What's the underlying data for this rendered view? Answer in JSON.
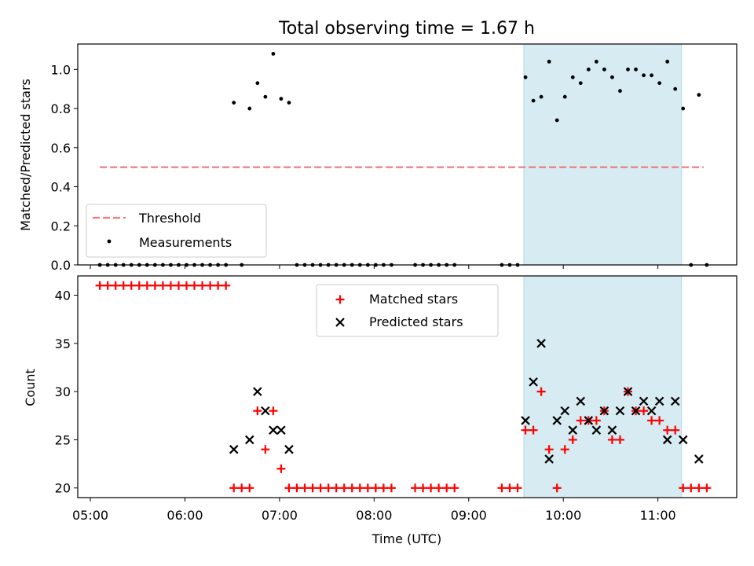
{
  "chart_data": [
    {
      "type": "scatter",
      "title": "Total observing time = 1.67 h",
      "xlabel": "",
      "ylabel": "Matched/Predicted stars",
      "xlim": [
        "04:52",
        "11:50"
      ],
      "ylim": [
        0,
        1.13
      ],
      "yticks": [
        "0.0",
        "0.2",
        "0.4",
        "0.6",
        "0.8",
        "1.0"
      ],
      "xticks": [
        "05:00",
        "06:00",
        "07:00",
        "08:00",
        "09:00",
        "10:00",
        "11:00"
      ],
      "shaded_region": [
        "09:35",
        "11:15"
      ],
      "threshold": {
        "name": "Threshold",
        "value": 0.5,
        "x_range": [
          "05:06",
          "11:29"
        ],
        "color": "#f07878"
      },
      "legend": {
        "placement": "lower-left",
        "entries": [
          "Threshold",
          "Measurements"
        ]
      },
      "series": [
        {
          "name": "Measurements",
          "color": "#000000",
          "points": [
            [
              "05:06",
              0
            ],
            [
              "05:11",
              0
            ],
            [
              "05:16",
              0
            ],
            [
              "05:21",
              0
            ],
            [
              "05:26",
              0
            ],
            [
              "05:31",
              0
            ],
            [
              "05:36",
              0
            ],
            [
              "05:41",
              0
            ],
            [
              "05:46",
              0
            ],
            [
              "05:51",
              0
            ],
            [
              "05:56",
              0
            ],
            [
              "06:01",
              0
            ],
            [
              "06:06",
              0
            ],
            [
              "06:11",
              0
            ],
            [
              "06:16",
              0
            ],
            [
              "06:21",
              0
            ],
            [
              "06:26",
              0
            ],
            [
              "06:31",
              0.83
            ],
            [
              "06:36",
              0
            ],
            [
              "06:41",
              0.8
            ],
            [
              "06:46",
              0.93
            ],
            [
              "06:51",
              0.86
            ],
            [
              "06:56",
              1.08
            ],
            [
              "07:01",
              0.85
            ],
            [
              "07:06",
              0.83
            ],
            [
              "07:11",
              0
            ],
            [
              "07:16",
              0
            ],
            [
              "07:21",
              0
            ],
            [
              "07:26",
              0
            ],
            [
              "07:31",
              0
            ],
            [
              "07:36",
              0
            ],
            [
              "07:41",
              0
            ],
            [
              "07:46",
              0
            ],
            [
              "07:51",
              0
            ],
            [
              "07:56",
              0
            ],
            [
              "08:01",
              0
            ],
            [
              "08:06",
              0
            ],
            [
              "08:11",
              0
            ],
            [
              "08:26",
              0
            ],
            [
              "08:31",
              0
            ],
            [
              "08:36",
              0
            ],
            [
              "08:41",
              0
            ],
            [
              "08:46",
              0
            ],
            [
              "08:51",
              0
            ],
            [
              "09:21",
              0
            ],
            [
              "09:26",
              0
            ],
            [
              "09:31",
              0
            ],
            [
              "09:36",
              0.96
            ],
            [
              "09:41",
              0.84
            ],
            [
              "09:46",
              0.86
            ],
            [
              "09:51",
              1.04
            ],
            [
              "09:56",
              0.74
            ],
            [
              "10:01",
              0.86
            ],
            [
              "10:06",
              0.96
            ],
            [
              "10:11",
              0.93
            ],
            [
              "10:16",
              1.0
            ],
            [
              "10:21",
              1.04
            ],
            [
              "10:26",
              1.0
            ],
            [
              "10:31",
              0.96
            ],
            [
              "10:36",
              0.89
            ],
            [
              "10:41",
              1.0
            ],
            [
              "10:46",
              1.0
            ],
            [
              "10:51",
              0.97
            ],
            [
              "10:56",
              0.97
            ],
            [
              "11:01",
              0.93
            ],
            [
              "11:06",
              1.04
            ],
            [
              "11:11",
              0.9
            ],
            [
              "11:16",
              0.8
            ],
            [
              "11:21",
              0
            ],
            [
              "11:26",
              0.87
            ],
            [
              "11:31",
              0
            ]
          ]
        }
      ]
    },
    {
      "type": "scatter",
      "title": "",
      "xlabel": "Time (UTC)",
      "ylabel": "Count",
      "xlim": [
        "04:52",
        "11:50"
      ],
      "ylim": [
        19,
        42
      ],
      "yticks": [
        "20",
        "25",
        "30",
        "35",
        "40"
      ],
      "xticks": [
        "05:00",
        "06:00",
        "07:00",
        "08:00",
        "09:00",
        "10:00",
        "11:00"
      ],
      "shaded_region": [
        "09:35",
        "11:15"
      ],
      "legend": {
        "placement": "upper-center",
        "entries": [
          "Matched stars",
          "Predicted stars"
        ]
      },
      "series": [
        {
          "name": "Matched stars",
          "marker": "plus",
          "color": "#ff0000",
          "points": [
            [
              "05:06",
              41
            ],
            [
              "05:11",
              41
            ],
            [
              "05:16",
              41
            ],
            [
              "05:21",
              41
            ],
            [
              "05:26",
              41
            ],
            [
              "05:31",
              41
            ],
            [
              "05:36",
              41
            ],
            [
              "05:41",
              41
            ],
            [
              "05:46",
              41
            ],
            [
              "05:51",
              41
            ],
            [
              "05:56",
              41
            ],
            [
              "06:01",
              41
            ],
            [
              "06:06",
              41
            ],
            [
              "06:11",
              41
            ],
            [
              "06:16",
              41
            ],
            [
              "06:21",
              41
            ],
            [
              "06:26",
              41
            ],
            [
              "06:31",
              20
            ],
            [
              "06:36",
              20
            ],
            [
              "06:41",
              20
            ],
            [
              "06:46",
              28
            ],
            [
              "06:51",
              24
            ],
            [
              "06:56",
              28
            ],
            [
              "07:01",
              22
            ],
            [
              "07:06",
              20
            ],
            [
              "07:11",
              20
            ],
            [
              "07:16",
              20
            ],
            [
              "07:21",
              20
            ],
            [
              "07:26",
              20
            ],
            [
              "07:31",
              20
            ],
            [
              "07:36",
              20
            ],
            [
              "07:41",
              20
            ],
            [
              "07:46",
              20
            ],
            [
              "07:51",
              20
            ],
            [
              "07:56",
              20
            ],
            [
              "08:01",
              20
            ],
            [
              "08:06",
              20
            ],
            [
              "08:11",
              20
            ],
            [
              "08:26",
              20
            ],
            [
              "08:31",
              20
            ],
            [
              "08:36",
              20
            ],
            [
              "08:41",
              20
            ],
            [
              "08:46",
              20
            ],
            [
              "08:51",
              20
            ],
            [
              "09:21",
              20
            ],
            [
              "09:26",
              20
            ],
            [
              "09:31",
              20
            ],
            [
              "09:36",
              26
            ],
            [
              "09:41",
              26
            ],
            [
              "09:46",
              30
            ],
            [
              "09:51",
              24
            ],
            [
              "09:56",
              20
            ],
            [
              "10:01",
              24
            ],
            [
              "10:06",
              25
            ],
            [
              "10:11",
              27
            ],
            [
              "10:16",
              27
            ],
            [
              "10:21",
              27
            ],
            [
              "10:26",
              28
            ],
            [
              "10:31",
              25
            ],
            [
              "10:36",
              25
            ],
            [
              "10:41",
              30
            ],
            [
              "10:46",
              28
            ],
            [
              "10:51",
              28
            ],
            [
              "10:56",
              27
            ],
            [
              "11:01",
              27
            ],
            [
              "11:06",
              26
            ],
            [
              "11:11",
              26
            ],
            [
              "11:16",
              20
            ],
            [
              "11:21",
              20
            ],
            [
              "11:26",
              20
            ],
            [
              "11:31",
              20
            ]
          ]
        },
        {
          "name": "Predicted stars",
          "marker": "x",
          "color": "#000000",
          "points": [
            [
              "06:31",
              24
            ],
            [
              "06:41",
              25
            ],
            [
              "06:46",
              30
            ],
            [
              "06:51",
              28
            ],
            [
              "06:56",
              26
            ],
            [
              "07:01",
              26
            ],
            [
              "07:06",
              24
            ],
            [
              "09:36",
              27
            ],
            [
              "09:41",
              31
            ],
            [
              "09:46",
              35
            ],
            [
              "09:51",
              23
            ],
            [
              "09:56",
              27
            ],
            [
              "10:01",
              28
            ],
            [
              "10:06",
              26
            ],
            [
              "10:11",
              29
            ],
            [
              "10:16",
              27
            ],
            [
              "10:21",
              26
            ],
            [
              "10:26",
              28
            ],
            [
              "10:31",
              26
            ],
            [
              "10:36",
              28
            ],
            [
              "10:41",
              30
            ],
            [
              "10:46",
              28
            ],
            [
              "10:51",
              29
            ],
            [
              "10:56",
              28
            ],
            [
              "11:01",
              29
            ],
            [
              "11:06",
              25
            ],
            [
              "11:11",
              29
            ],
            [
              "11:16",
              25
            ],
            [
              "11:26",
              23
            ]
          ]
        }
      ]
    }
  ]
}
